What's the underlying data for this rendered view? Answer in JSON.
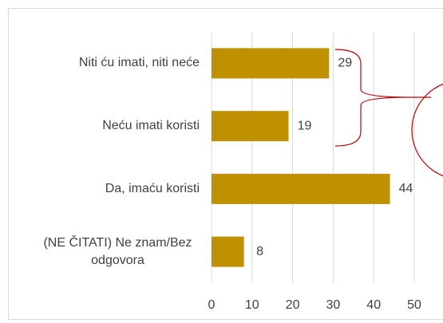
{
  "chart_data": {
    "type": "bar",
    "orientation": "horizontal",
    "categories": [
      "Niti ću imati, niti neće",
      "Neću imati koristi",
      "Da, imaću koristi",
      "(NE ČITATI) Ne znam/Bez odgovora"
    ],
    "values": [
      29,
      19,
      44,
      8
    ],
    "color": "#bf9000",
    "xlim": [
      0,
      50
    ],
    "xticks": [
      0,
      10,
      20,
      30,
      40,
      50
    ],
    "grid": true
  }
}
